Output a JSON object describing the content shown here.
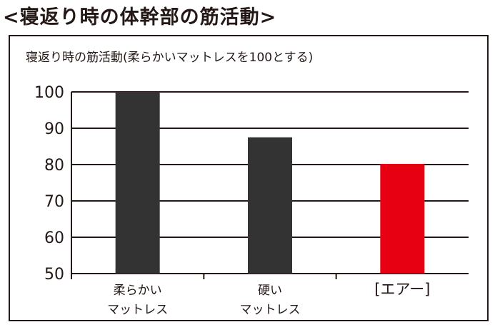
{
  "page": {
    "heading": "<寝返り時の体幹部の筋活動>"
  },
  "chart_data": {
    "type": "bar",
    "title": "寝返り時の筋活動(柔らかいマットレスを100とする)",
    "categories": [
      {
        "lines": [
          "柔らかい",
          "マットレス"
        ]
      },
      {
        "lines": [
          "硬い",
          "マットレス"
        ]
      },
      {
        "lines": [
          "[エアー]"
        ]
      }
    ],
    "values": [
      100,
      87.5,
      80.2
    ],
    "colors": [
      "#333333",
      "#333333",
      "#e60012"
    ],
    "yticks": [
      50,
      60,
      70,
      80,
      90,
      100
    ],
    "ylim": [
      50,
      100
    ],
    "grid": true,
    "legend": false
  }
}
